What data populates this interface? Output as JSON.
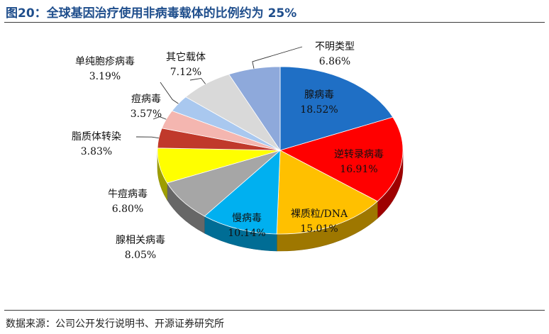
{
  "header": {
    "title": "图20：全球基因治疗使用非病毒载体的比例约为 25%"
  },
  "footer": {
    "source": "数据来源：公司公开发行说明书、开源证券研究所"
  },
  "chart_data": {
    "type": "pie",
    "title": "图20：全球基因治疗使用非病毒载体的比例约为 25%",
    "unit": "%",
    "slices": [
      {
        "label": "腺病毒",
        "value": 18.52,
        "display": "18.52%",
        "color": "#1f6fc5"
      },
      {
        "label": "逆转录病毒",
        "value": 16.91,
        "display": "16.91%",
        "color": "#ff0000"
      },
      {
        "label": "裸质粒/DNA",
        "value": 15.01,
        "display": "15.01%",
        "color": "#ffc000"
      },
      {
        "label": "慢病毒",
        "value": 10.14,
        "display": "10.14%",
        "color": "#00b0f0"
      },
      {
        "label": "腺相关病毒",
        "value": 8.05,
        "display": "8.05%",
        "color": "#a6a6a6"
      },
      {
        "label": "牛痘病毒",
        "value": 6.8,
        "display": "6.80%",
        "color": "#ffff00"
      },
      {
        "label": "脂质体转染",
        "value": 3.83,
        "display": "3.83%",
        "color": "#c0392b"
      },
      {
        "label": "痘病毒",
        "value": 3.57,
        "display": "3.57%",
        "color": "#f4b6b0"
      },
      {
        "label": "单纯胞疹病毒",
        "value": 3.19,
        "display": "3.19%",
        "color": "#a9c8ef"
      },
      {
        "label": "其它载体",
        "value": 7.12,
        "display": "7.12%",
        "color": "#d9d9d9"
      },
      {
        "label": "不明类型",
        "value": 6.86,
        "display": "6.86%",
        "color": "#8ea9db"
      }
    ]
  }
}
